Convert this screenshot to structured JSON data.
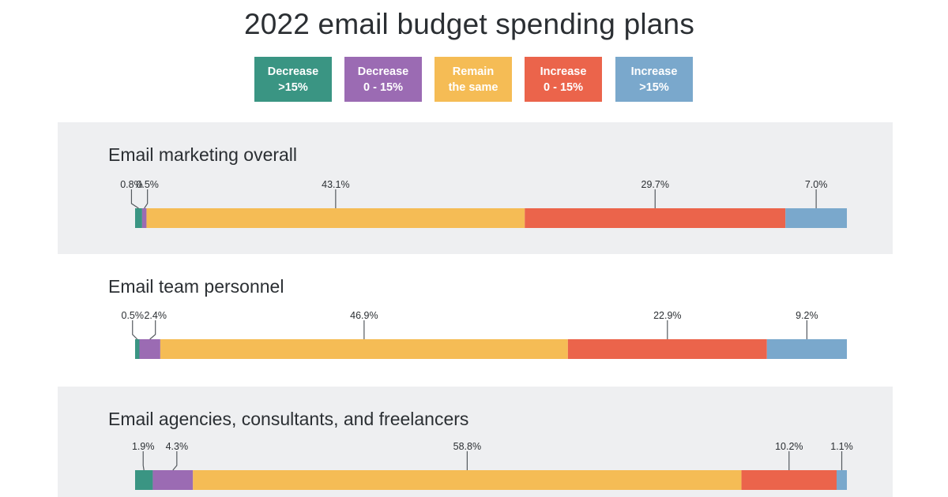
{
  "title": "2022 email budget spending plans",
  "legend": [
    {
      "label": "Decrease\n>15%",
      "color": "#3a9583"
    },
    {
      "label": "Decrease\n0 - 15%",
      "color": "#9b6bb3"
    },
    {
      "label": "Remain\nthe same",
      "color": "#f5bc55"
    },
    {
      "label": "Increase\n0 - 15%",
      "color": "#eb644b"
    },
    {
      "label": "Increase\n>15%",
      "color": "#7aa8cc"
    }
  ],
  "chart_data": {
    "type": "bar",
    "stacked": true,
    "orientation": "horizontal",
    "title": "2022 email budget spending plans",
    "categories": [
      "Email marketing overall",
      "Email team personnel",
      "Email agencies, consultants, and freelancers"
    ],
    "series": [
      {
        "name": "Decrease >15%",
        "values": [
          0.8,
          0.5,
          1.9
        ]
      },
      {
        "name": "Decrease 0 - 15%",
        "values": [
          0.5,
          2.4,
          4.3
        ]
      },
      {
        "name": "Remain the same",
        "values": [
          43.1,
          46.9,
          58.8
        ]
      },
      {
        "name": "Increase 0 - 15%",
        "values": [
          29.7,
          22.9,
          10.2
        ]
      },
      {
        "name": "Increase >15%",
        "values": [
          7.0,
          9.2,
          1.1
        ]
      }
    ],
    "value_labels": [
      [
        "0.8%",
        "0.5%",
        "43.1%",
        "29.7%",
        "7.0%"
      ],
      [
        "0.5%",
        "2.4%",
        "46.9%",
        "22.9%",
        "9.2%"
      ],
      [
        "1.9%",
        "4.3%",
        "58.8%",
        "10.2%",
        "1.1%"
      ]
    ],
    "colors": [
      "#3a9583",
      "#9b6bb3",
      "#f5bc55",
      "#eb644b",
      "#7aa8cc"
    ],
    "legend_position": "top",
    "grid": false
  }
}
